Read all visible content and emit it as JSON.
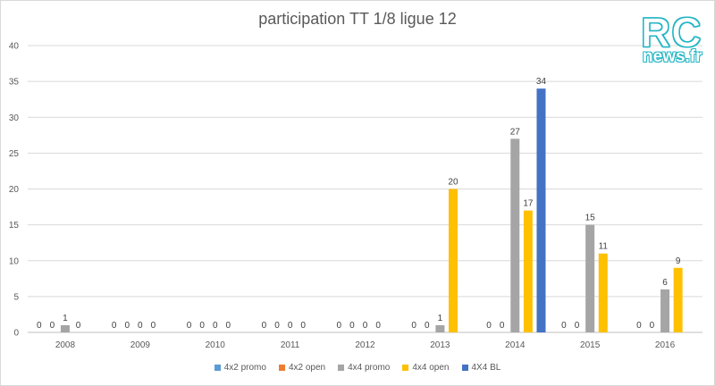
{
  "chart_data": {
    "type": "bar",
    "title": "participation TT 1/8 ligue 12",
    "categories": [
      "2008",
      "2009",
      "2010",
      "2011",
      "2012",
      "2013",
      "2014",
      "2015",
      "2016"
    ],
    "ylim": [
      0,
      40
    ],
    "yticks": [
      0,
      5,
      10,
      15,
      20,
      25,
      30,
      35,
      40
    ],
    "grid": true,
    "legend_position": "bottom",
    "series": [
      {
        "name": "4x2 promo",
        "color": "#5b9bd5",
        "values": [
          0,
          0,
          0,
          0,
          0,
          0,
          0,
          0,
          0
        ],
        "labels": [
          "0",
          "0",
          "0",
          "0",
          "0",
          "0",
          "0",
          "0",
          "0"
        ]
      },
      {
        "name": "4x2 open",
        "color": "#ed7d31",
        "values": [
          0,
          0,
          0,
          0,
          0,
          0,
          0,
          0,
          0
        ],
        "labels": [
          "0",
          "0",
          "0",
          "0",
          "0",
          "0",
          "0",
          "0",
          "0"
        ]
      },
      {
        "name": "4x4 promo",
        "color": "#a5a5a5",
        "values": [
          1,
          0,
          0,
          0,
          0,
          1,
          27,
          15,
          6
        ],
        "labels": [
          "1",
          "0",
          "0",
          "0",
          "0",
          "1",
          "27",
          "15",
          "6"
        ]
      },
      {
        "name": "4x4 open",
        "color": "#ffc000",
        "values": [
          0,
          0,
          0,
          0,
          0,
          20,
          17,
          11,
          9
        ],
        "labels": [
          "0",
          "0",
          "0",
          "0",
          "0",
          "20",
          "17",
          "11",
          "9"
        ]
      },
      {
        "name": "4X4 BL",
        "color": "#4472c4",
        "values": [
          null,
          null,
          null,
          null,
          null,
          null,
          34,
          null,
          null
        ],
        "labels": [
          null,
          null,
          null,
          null,
          null,
          null,
          "34",
          null,
          null
        ]
      }
    ]
  },
  "logo": {
    "line1": "RC",
    "line2": "news.fr"
  }
}
